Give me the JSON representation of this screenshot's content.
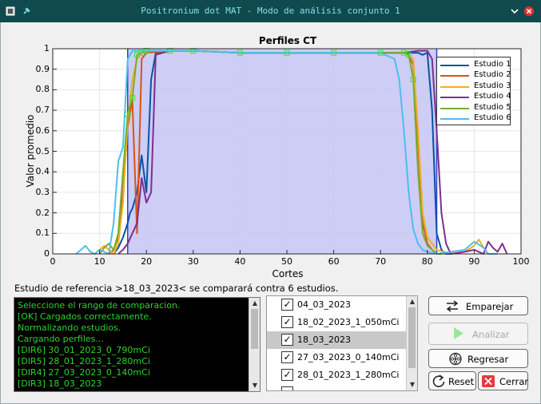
{
  "window": {
    "title": "Positronium dot MAT - Modo de análisis conjunto 1"
  },
  "plot": {
    "title": "Perfiles CT",
    "xlabel": "Cortes",
    "ylabel": "Valor promedio",
    "x_ticks": [
      "0",
      "10",
      "20",
      "30",
      "40",
      "50",
      "60",
      "70",
      "80",
      "90",
      "100"
    ],
    "y_ticks": [
      "0",
      "0.1",
      "0.2",
      "0.3",
      "0.4",
      "0.5",
      "0.6",
      "0.7",
      "0.8",
      "0.9",
      "1"
    ]
  },
  "chart_data": {
    "type": "line",
    "title": "Perfiles CT",
    "xlabel": "Cortes",
    "ylabel": "Valor promedio",
    "xlim": [
      0,
      100
    ],
    "ylim": [
      0,
      1
    ],
    "grid": true,
    "legend_position": "top-right",
    "shaded_region": {
      "x": [
        16,
        82
      ],
      "color": "#c8c8f4"
    },
    "series": [
      {
        "name": "Estudio 1",
        "color": "#0b52a5",
        "x": [
          13,
          14,
          15,
          16,
          16.5,
          17,
          18,
          19,
          20,
          21,
          22,
          25,
          30,
          40,
          50,
          60,
          70,
          75,
          78,
          79,
          80,
          81,
          82,
          83,
          84,
          85
        ],
        "y": [
          0,
          0.03,
          0.08,
          0.15,
          0.2,
          0.22,
          0.3,
          0.48,
          0.3,
          0.85,
          0.98,
          0.99,
          0.99,
          0.98,
          0.98,
          0.98,
          0.98,
          0.98,
          0.98,
          0.97,
          0.98,
          0.7,
          0.1,
          0.02,
          0,
          0
        ]
      },
      {
        "name": "Estudio 2",
        "color": "#d95319",
        "x": [
          12,
          13,
          14,
          15,
          16,
          17,
          18,
          19,
          20,
          25,
          30,
          40,
          50,
          60,
          70,
          75,
          76,
          77,
          78,
          79,
          80,
          81,
          82,
          83
        ],
        "y": [
          0,
          0.02,
          0.08,
          0.3,
          0.62,
          0.75,
          0.1,
          0.95,
          0.98,
          0.99,
          0.99,
          0.98,
          0.98,
          0.98,
          0.98,
          0.98,
          0.97,
          0.92,
          0.55,
          0.15,
          0.05,
          0.02,
          0,
          0
        ]
      },
      {
        "name": "Estudio 3",
        "color": "#edb120",
        "x": [
          9,
          10,
          11,
          12,
          13,
          14,
          15,
          16,
          17,
          18,
          19,
          20,
          25,
          30,
          40,
          50,
          60,
          70,
          75,
          77,
          78,
          79,
          80,
          82,
          85,
          88,
          90,
          91,
          92,
          93
        ],
        "y": [
          0,
          0.02,
          0.04,
          0.02,
          0,
          0.05,
          0.25,
          0.65,
          0.85,
          0.95,
          0.98,
          0.99,
          0.99,
          0.99,
          0.98,
          0.98,
          0.98,
          0.98,
          0.98,
          0.95,
          0.6,
          0.2,
          0.08,
          0.02,
          0,
          0.01,
          0.04,
          0.07,
          0.03,
          0
        ]
      },
      {
        "name": "Estudio 4",
        "color": "#7e2f8e",
        "x": [
          14,
          15,
          16,
          17,
          18,
          19,
          20,
          21,
          22,
          25,
          30,
          40,
          50,
          60,
          70,
          75,
          78,
          79,
          80,
          81,
          82,
          83,
          84,
          85,
          88,
          90,
          92,
          93,
          94,
          95,
          96,
          97
        ],
        "y": [
          0,
          0.02,
          0.05,
          0.1,
          0.15,
          0.37,
          0.25,
          0.3,
          0.97,
          0.99,
          0.99,
          0.98,
          0.98,
          0.98,
          0.98,
          0.98,
          0.99,
          0.99,
          0.99,
          0.95,
          0.6,
          0.2,
          0.05,
          0,
          0.01,
          0.02,
          0,
          0.06,
          0.03,
          0.01,
          0.05,
          0
        ]
      },
      {
        "name": "Estudio 5",
        "color": "#77ac30",
        "x": [
          10,
          11,
          12,
          13,
          14,
          15,
          16,
          17,
          18,
          19,
          20,
          25,
          30,
          40,
          50,
          60,
          70,
          75,
          76,
          77,
          78,
          79,
          80,
          81,
          82,
          83
        ],
        "y": [
          0,
          0.03,
          0.05,
          0.02,
          0.1,
          0.4,
          0.68,
          0.76,
          0.97,
          0.98,
          0.99,
          0.99,
          0.99,
          0.98,
          0.98,
          0.98,
          0.98,
          0.98,
          0.97,
          0.85,
          0.4,
          0.1,
          0.04,
          0.02,
          0,
          0
        ]
      },
      {
        "name": "Estudio 6",
        "color": "#4dbeee",
        "x": [
          5,
          6,
          7,
          8,
          9,
          10,
          11,
          12,
          13,
          14,
          15,
          16,
          17,
          18,
          20,
          25,
          30,
          40,
          50,
          60,
          70,
          73,
          74,
          75,
          76,
          77,
          78,
          79,
          80,
          82,
          85,
          88,
          90,
          92,
          93,
          95
        ],
        "y": [
          0,
          0.02,
          0.04,
          0.01,
          0,
          0.02,
          0.01,
          0,
          0.15,
          0.45,
          0.52,
          0.95,
          0.99,
          0.99,
          0.99,
          0.99,
          0.99,
          0.98,
          0.98,
          0.98,
          0.98,
          0.95,
          0.85,
          0.6,
          0.3,
          0.12,
          0.05,
          0.02,
          0.01,
          0,
          0.01,
          0.02,
          0.06,
          0.03,
          0,
          0
        ]
      }
    ]
  },
  "legend": {
    "items": [
      {
        "label": "Estudio 1",
        "color": "#0b52a5"
      },
      {
        "label": "Estudio 2",
        "color": "#d95319"
      },
      {
        "label": "Estudio 3",
        "color": "#edb120"
      },
      {
        "label": "Estudio 4",
        "color": "#7e2f8e"
      },
      {
        "label": "Estudio 5",
        "color": "#77ac30"
      },
      {
        "label": "Estudio 6",
        "color": "#4dbeee"
      }
    ]
  },
  "status": {
    "text": "Estudio de referencia >18_03_2023< se comparará contra 6 estudios."
  },
  "log": {
    "lines": [
      "Seleccione el rango de comparacion.",
      "[OK] Cargados correctamente.",
      "Normalizando estudios.",
      "Cargando perfiles...",
      "[DIR6] 30_01_2023_0_790mCi",
      "[DIR5] 28_01_2023_1_280mCi",
      "[DIR4] 27_03_2023_0_140mCi",
      "[DIR3] 18_03_2023"
    ]
  },
  "studies": {
    "items": [
      {
        "label": "04_03_2023",
        "checked": true,
        "selected": false
      },
      {
        "label": "18_02_2023_1_050mCi",
        "checked": true,
        "selected": false
      },
      {
        "label": "18_03_2023",
        "checked": true,
        "selected": true
      },
      {
        "label": "27_03_2023_0_140mCi",
        "checked": true,
        "selected": false
      },
      {
        "label": "28_01_2023_1_280mCi",
        "checked": true,
        "selected": false
      }
    ]
  },
  "buttons": {
    "emparejar": "Emparejar",
    "analizar": "Analizar",
    "regresar": "Regresar",
    "reset": "Reset",
    "cerrar": "Cerrar"
  }
}
